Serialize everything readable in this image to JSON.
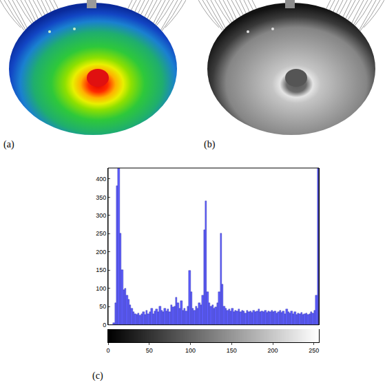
{
  "panel_labels": [
    "(a)",
    "(b)",
    "(c)"
  ],
  "chart_data": {
    "type": "histogram",
    "bins": [
      0,
      2,
      4,
      6,
      8,
      10,
      12,
      14,
      16,
      18,
      20,
      22,
      24,
      26,
      28,
      30,
      32,
      34,
      36,
      38,
      40,
      42,
      44,
      46,
      48,
      50,
      52,
      54,
      56,
      58,
      60,
      62,
      64,
      66,
      68,
      70,
      72,
      74,
      76,
      78,
      80,
      82,
      84,
      86,
      88,
      90,
      92,
      94,
      96,
      98,
      100,
      102,
      104,
      106,
      108,
      110,
      112,
      114,
      116,
      118,
      120,
      122,
      124,
      126,
      128,
      130,
      132,
      134,
      136,
      138,
      140,
      142,
      144,
      146,
      148,
      150,
      152,
      154,
      156,
      158,
      160,
      162,
      164,
      166,
      168,
      170,
      172,
      174,
      176,
      178,
      180,
      182,
      184,
      186,
      188,
      190,
      192,
      194,
      196,
      198,
      200,
      202,
      204,
      206,
      208,
      210,
      212,
      214,
      216,
      218,
      220,
      222,
      224,
      226,
      228,
      230,
      232,
      234,
      236,
      238,
      240,
      242,
      244,
      246,
      248,
      250,
      252,
      254,
      256
    ],
    "values": [
      0,
      0,
      0,
      5,
      60,
      380,
      430,
      250,
      150,
      95,
      100,
      80,
      70,
      55,
      45,
      35,
      30,
      28,
      32,
      25,
      30,
      35,
      28,
      40,
      30,
      35,
      45,
      30,
      38,
      42,
      35,
      50,
      40,
      35,
      45,
      38,
      42,
      35,
      55,
      48,
      50,
      75,
      60,
      45,
      65,
      40,
      45,
      38,
      50,
      148,
      90,
      45,
      40,
      50,
      45,
      60,
      55,
      80,
      260,
      340,
      90,
      60,
      50,
      55,
      45,
      48,
      60,
      90,
      250,
      110,
      50,
      45,
      40,
      42,
      38,
      45,
      35,
      40,
      38,
      42,
      35,
      40,
      38,
      32,
      40,
      36,
      38,
      34,
      40,
      35,
      38,
      42,
      35,
      38,
      36,
      40,
      34,
      38,
      36,
      40,
      35,
      38,
      32,
      36,
      40,
      34,
      38,
      30,
      42,
      35,
      32,
      38,
      30,
      35,
      28,
      32,
      30,
      34,
      28,
      30,
      32,
      28,
      30,
      35,
      32,
      40,
      80,
      430
    ],
    "color": "#5c5cff",
    "xlim": [
      0,
      256
    ],
    "xticks": [
      0,
      50,
      100,
      150,
      200,
      250
    ],
    "ylim": [
      0,
      430
    ],
    "yticks": [
      0,
      50,
      100,
      150,
      200,
      250,
      300,
      350,
      400
    ],
    "grid": false
  }
}
